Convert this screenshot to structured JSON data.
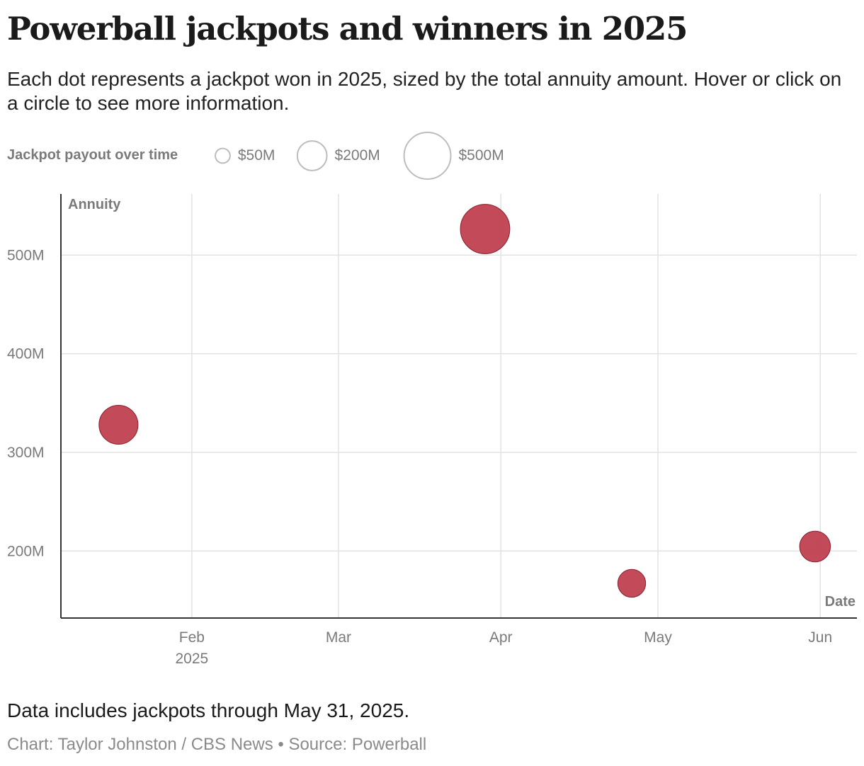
{
  "title": "Powerball jackpots and winners in 2025",
  "subtitle": "Each dot represents a jackpot won in 2025, sized by the total annuity amount. Hover or click on a circle to see more information.",
  "legend": {
    "title": "Jackpot payout over time",
    "items": [
      {
        "label": "$50M",
        "value": 50
      },
      {
        "label": "$200M",
        "value": 200
      },
      {
        "label": "$500M",
        "value": 500
      }
    ]
  },
  "colors": {
    "dot_fill": "#c0404f",
    "dot_stroke": "#8a1f2c",
    "grid": "#e2e2e2",
    "axis": "#333333",
    "muted_text": "#7a7a7a"
  },
  "chart_data": {
    "type": "scatter",
    "xlabel": "Date",
    "ylabel": "Annuity",
    "x_range": [
      "2025-01-07",
      "2025-06-08"
    ],
    "ylim": [
      132,
      562
    ],
    "y_ticks": [
      {
        "value": 200,
        "label": "200M"
      },
      {
        "value": 300,
        "label": "300M"
      },
      {
        "value": 400,
        "label": "400M"
      },
      {
        "value": 500,
        "label": "500M"
      }
    ],
    "x_ticks": [
      {
        "date": "2025-02-01",
        "label": "Feb",
        "sublabel": "2025"
      },
      {
        "date": "2025-03-01",
        "label": "Mar",
        "sublabel": ""
      },
      {
        "date": "2025-04-01",
        "label": "Apr",
        "sublabel": ""
      },
      {
        "date": "2025-05-01",
        "label": "May",
        "sublabel": ""
      },
      {
        "date": "2025-06-01",
        "label": "Jun",
        "sublabel": ""
      }
    ],
    "points": [
      {
        "date": "2025-01-18",
        "annuity": 328
      },
      {
        "date": "2025-03-29",
        "annuity": 526.5
      },
      {
        "date": "2025-04-26",
        "annuity": 167.2
      },
      {
        "date": "2025-05-31",
        "annuity": 204.5
      }
    ],
    "grid": true
  },
  "note": "Data includes jackpots through May 31, 2025.",
  "source": "Chart: Taylor Johnston / CBS News • Source: Powerball"
}
